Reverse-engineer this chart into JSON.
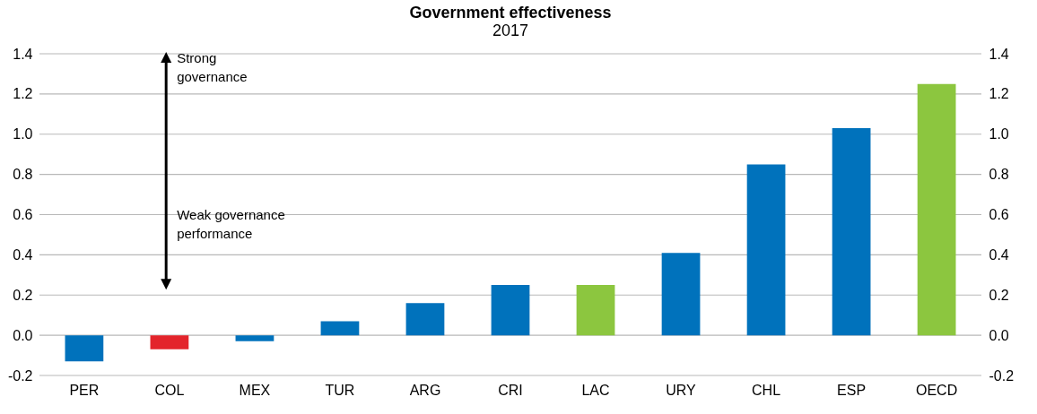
{
  "chart_data": {
    "type": "bar",
    "title": "Government effectiveness",
    "subtitle": "2017",
    "categories": [
      "PER",
      "COL",
      "MEX",
      "TUR",
      "ARG",
      "CRI",
      "LAC",
      "URY",
      "CHL",
      "ESP",
      "OECD"
    ],
    "values": [
      -0.13,
      -0.07,
      -0.03,
      0.07,
      0.16,
      0.25,
      0.25,
      0.41,
      0.85,
      1.03,
      1.25
    ],
    "colors": [
      "#0072bc",
      "#e3242b",
      "#0072bc",
      "#0072bc",
      "#0072bc",
      "#0072bc",
      "#8cc63f",
      "#0072bc",
      "#0072bc",
      "#0072bc",
      "#8cc63f"
    ],
    "ylim": [
      -0.2,
      1.4
    ],
    "yticks": [
      -0.2,
      {
        "value": 0,
        "label": "0.0"
      },
      0.2,
      0.4,
      0.6,
      0.8,
      {
        "value": 1,
        "label": "1.0"
      },
      1.2,
      1.4
    ],
    "y2lim": [
      -0.2,
      1.4
    ],
    "y2ticks": [
      -0.2,
      {
        "value": 0,
        "label": "0.0"
      },
      0.2,
      0.4,
      0.6,
      0.8,
      {
        "value": 1,
        "label": "1.0"
      },
      1.2,
      1.4
    ],
    "grid": "y",
    "annotations": [
      "Strong governance",
      "Weak governance performance"
    ]
  }
}
